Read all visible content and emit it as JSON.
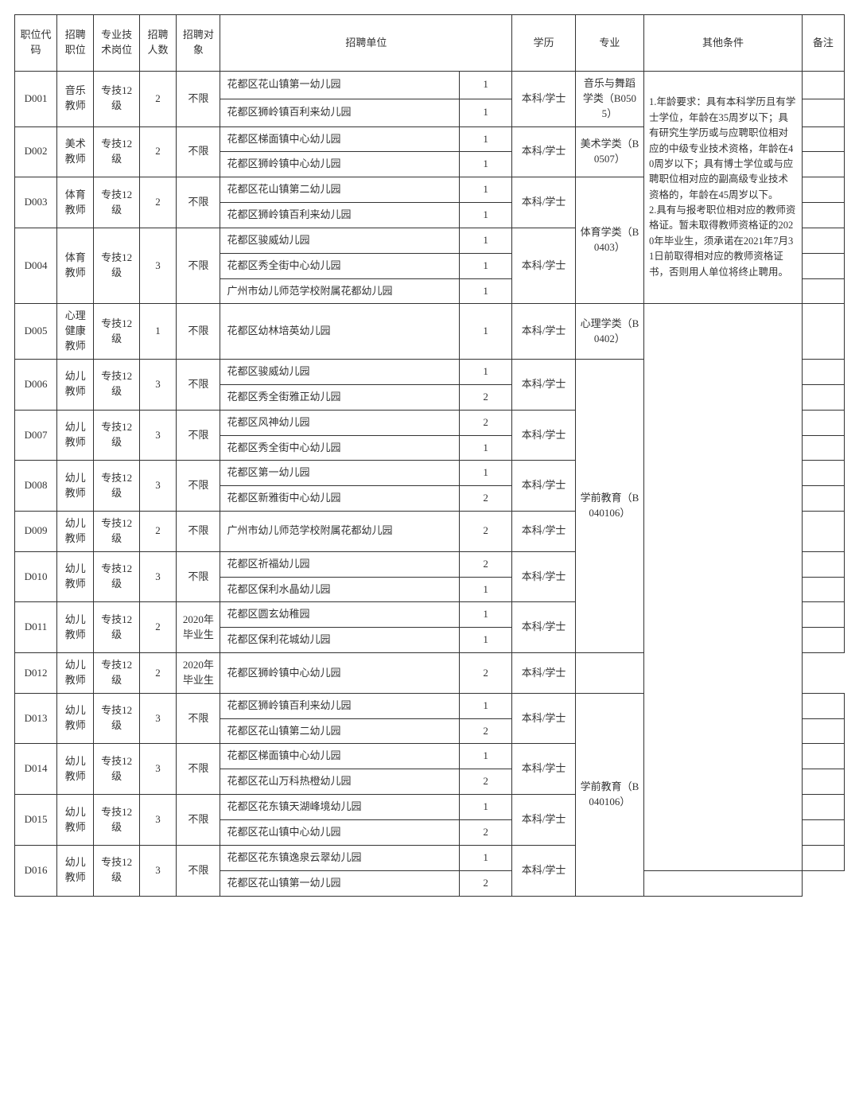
{
  "headers": {
    "code": "职位代码",
    "position": "招聘职位",
    "tech": "专业技术岗位",
    "num": "招聘人数",
    "obj": "招聘对象",
    "unit": "招聘单位",
    "edu": "学历",
    "major": "专业",
    "other": "其他条件",
    "note": "备注"
  },
  "common": {
    "tech_level": "专技12级",
    "obj_unlimited": "不限",
    "obj_2020": "2020年毕业生",
    "edu_bachelor": "本科/学士"
  },
  "majors": {
    "music_dance": "音乐与舞蹈学类（B0505）",
    "art": "美术学类（B0507）",
    "pe": "体育学类（B0403）",
    "psych": "心理学类（B0402）",
    "preschool": "学前教育（B040106）"
  },
  "other_conditions": "1.年龄要求：具有本科学历且有学士学位，年龄在35周岁以下；具有研究生学历或与应聘职位相对应的中级专业技术资格，年龄在40周岁以下；具有博士学位或与应聘职位相对应的副高级专业技术资格的，年龄在45周岁以下。\n2.具有与报考职位相对应的教师资格证。暂未取得教师资格证的2020年毕业生，须承诺在2021年7月31日前取得相对应的教师资格证书，否则用人单位将终止聘用。",
  "rows": {
    "D001": {
      "pos": "音乐教师",
      "num": "2",
      "units": [
        [
          "花都区花山镇第一幼儿园",
          "1"
        ],
        [
          "花都区狮岭镇百利来幼儿园",
          "1"
        ]
      ]
    },
    "D002": {
      "pos": "美术教师",
      "num": "2",
      "units": [
        [
          "花都区梯面镇中心幼儿园",
          "1"
        ],
        [
          "花都区狮岭镇中心幼儿园",
          "1"
        ]
      ]
    },
    "D003": {
      "pos": "体育教师",
      "num": "2",
      "units": [
        [
          "花都区花山镇第二幼儿园",
          "1"
        ],
        [
          "花都区狮岭镇百利来幼儿园",
          "1"
        ]
      ]
    },
    "D004": {
      "pos": "体育教师",
      "num": "3",
      "units": [
        [
          "花都区骏威幼儿园",
          "1"
        ],
        [
          "花都区秀全街中心幼儿园",
          "1"
        ],
        [
          "广州市幼儿师范学校附属花都幼儿园",
          "1"
        ]
      ]
    },
    "D005": {
      "pos": "心理健康教师",
      "num": "1",
      "units": [
        [
          "花都区幼林培英幼儿园",
          "1"
        ]
      ]
    },
    "D006": {
      "pos": "幼儿教师",
      "num": "3",
      "units": [
        [
          "花都区骏威幼儿园",
          "1"
        ],
        [
          "花都区秀全街雅正幼儿园",
          "2"
        ]
      ]
    },
    "D007": {
      "pos": "幼儿教师",
      "num": "3",
      "units": [
        [
          "花都区风神幼儿园",
          "2"
        ],
        [
          "花都区秀全街中心幼儿园",
          "1"
        ]
      ]
    },
    "D008": {
      "pos": "幼儿教师",
      "num": "3",
      "units": [
        [
          "花都区第一幼儿园",
          "1"
        ],
        [
          "花都区新雅街中心幼儿园",
          "2"
        ]
      ]
    },
    "D009": {
      "pos": "幼儿教师",
      "num": "2",
      "units": [
        [
          "广州市幼儿师范学校附属花都幼儿园",
          "2"
        ]
      ]
    },
    "D010": {
      "pos": "幼儿教师",
      "num": "3",
      "units": [
        [
          "花都区祈福幼儿园",
          "2"
        ],
        [
          "花都区保利水晶幼儿园",
          "1"
        ]
      ]
    },
    "D011": {
      "pos": "幼儿教师",
      "num": "2",
      "units": [
        [
          "花都区圆玄幼稚园",
          "1"
        ],
        [
          "花都区保利花城幼儿园",
          "1"
        ]
      ]
    },
    "D012": {
      "pos": "幼儿教师",
      "num": "2",
      "units": [
        [
          "花都区狮岭镇中心幼儿园",
          "2"
        ]
      ]
    },
    "D013": {
      "pos": "幼儿教师",
      "num": "3",
      "units": [
        [
          "花都区狮岭镇百利来幼儿园",
          "1"
        ],
        [
          "花都区花山镇第二幼儿园",
          "2"
        ]
      ]
    },
    "D014": {
      "pos": "幼儿教师",
      "num": "3",
      "units": [
        [
          "花都区梯面镇中心幼儿园",
          "1"
        ],
        [
          "花都区花山万科热橙幼儿园",
          "2"
        ]
      ]
    },
    "D015": {
      "pos": "幼儿教师",
      "num": "3",
      "units": [
        [
          "花都区花东镇天湖峰境幼儿园",
          "1"
        ],
        [
          "花都区花山镇中心幼儿园",
          "2"
        ]
      ]
    },
    "D016": {
      "pos": "幼儿教师",
      "num": "3",
      "units": [
        [
          "花都区花东镇逸泉云翠幼儿园",
          "1"
        ],
        [
          "花都区花山镇第一幼儿园",
          "2"
        ]
      ]
    }
  },
  "codes": {
    "d001": "D001",
    "d002": "D002",
    "d003": "D003",
    "d004": "D004",
    "d005": "D005",
    "d006": "D006",
    "d007": "D007",
    "d008": "D008",
    "d009": "D009",
    "d010": "D010",
    "d011": "D011",
    "d012": "D012",
    "d013": "D013",
    "d014": "D014",
    "d015": "D015",
    "d016": "D016"
  }
}
